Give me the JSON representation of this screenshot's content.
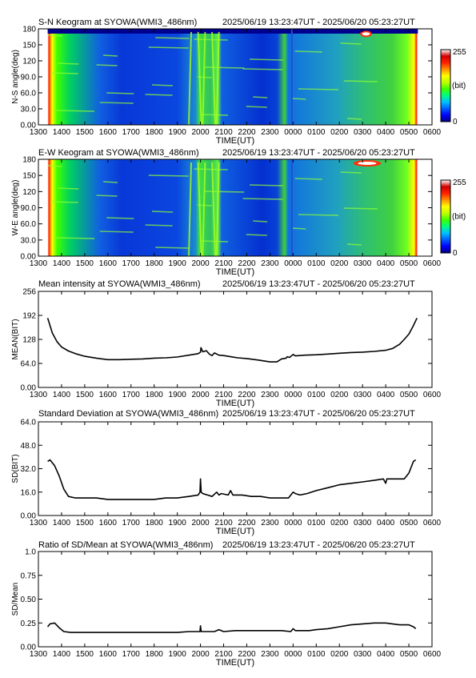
{
  "figure": {
    "time_range": "2025/06/19 13:23:47UT - 2025/06/20 05:23:27UT",
    "station": "SYOWA",
    "instrument": "WMI3_486nm"
  },
  "colorbar": {
    "max_label": "255",
    "unit_label": "(bit)",
    "min_label": "0",
    "stops": [
      "#000080",
      "#0000ff",
      "#0060ff",
      "#00c0ff",
      "#00ff80",
      "#40ff00",
      "#c0ff00",
      "#ffff00",
      "#ff9000",
      "#ff2000",
      "#d00000",
      "#ffffff"
    ]
  },
  "chart_data": [
    {
      "type": "heatmap",
      "title": "S-N Keogram at SYOWA(WMI3_486nm)",
      "subtitle": "2025/06/19 13:23:47UT - 2025/06/20 05:23:27UT",
      "xlabel": "TIME(UT)",
      "ylabel": "N-S angle(deg)",
      "x_ticks": [
        "1300",
        "1400",
        "1500",
        "1600",
        "1700",
        "1800",
        "1900",
        "2000",
        "2100",
        "2200",
        "2300",
        "0000",
        "0100",
        "0200",
        "0300",
        "0400",
        "0500",
        "0600"
      ],
      "y_ticks": [
        "0.00",
        "30.0",
        "60.0",
        "90.0",
        "120",
        "150",
        "180"
      ],
      "ylim": [
        0,
        180
      ],
      "value_range": [
        0,
        255
      ],
      "data_start_hour": 13.4,
      "data_end_hour": 29.39,
      "features": [
        {
          "kind": "auroral arc",
          "start_hour": 19.6,
          "end_hour": 20.8
        },
        {
          "kind": "moon",
          "start_hour": 26.9,
          "end_hour": 27.4,
          "angle": 175
        }
      ]
    },
    {
      "type": "heatmap",
      "title": "E-W Keogram at SYOWA(WMI3_486nm)",
      "subtitle": "2025/06/19 13:23:47UT - 2025/06/20 05:23:27UT",
      "xlabel": "TIME(UT)",
      "ylabel": "W-E angle(deg)",
      "x_ticks": [
        "1300",
        "1400",
        "1500",
        "1600",
        "1700",
        "1800",
        "1900",
        "2000",
        "2100",
        "2200",
        "2300",
        "0000",
        "0100",
        "0200",
        "0300",
        "0400",
        "0500",
        "0600"
      ],
      "y_ticks": [
        "0.00",
        "30.0",
        "60.0",
        "90.0",
        "120",
        "150",
        "180"
      ],
      "ylim": [
        0,
        180
      ],
      "value_range": [
        0,
        255
      ],
      "data_start_hour": 13.4,
      "data_end_hour": 29.39,
      "features": [
        {
          "kind": "auroral arc",
          "start_hour": 19.6,
          "end_hour": 20.8
        },
        {
          "kind": "moon",
          "start_hour": 26.6,
          "end_hour": 27.8,
          "angle": 177
        }
      ]
    },
    {
      "type": "line",
      "title": "Mean intensity at SYOWA(WMI3_486nm)",
      "subtitle": "2025/06/19 13:23:47UT - 2025/06/20 05:23:27UT",
      "xlabel": "TIME(UT)",
      "ylabel": "MEAN(BIT)",
      "x_ticks": [
        "1300",
        "1400",
        "1500",
        "1600",
        "1700",
        "1800",
        "1900",
        "2000",
        "2100",
        "2200",
        "2300",
        "0000",
        "0100",
        "0200",
        "0300",
        "0400",
        "0500",
        "0600"
      ],
      "y_ticks": [
        "0.00",
        "64.0",
        "128",
        "192",
        "256"
      ],
      "xlim_hours": [
        13,
        30
      ],
      "ylim": [
        0,
        256
      ],
      "series": [
        {
          "x_hours": [
            13.4,
            13.6,
            13.8,
            14.0,
            14.3,
            14.6,
            15.0,
            15.5,
            16.0,
            16.5,
            17.0,
            17.5,
            18.0,
            18.5,
            19.0,
            19.5,
            19.9,
            20.0,
            20.02,
            20.1,
            20.25,
            20.4,
            20.5,
            20.6,
            20.8,
            21.0,
            21.3,
            21.6,
            22.0,
            22.5,
            23.0,
            23.3,
            23.5,
            23.7,
            23.75,
            23.85,
            24.0,
            24.1,
            24.5,
            25.0,
            25.5,
            26.0,
            26.5,
            27.0,
            27.5,
            28.0,
            28.3,
            28.6,
            28.8,
            29.0,
            29.2,
            29.35
          ],
          "values": [
            185,
            145,
            122,
            108,
            97,
            90,
            83,
            78,
            74,
            74,
            75,
            76,
            78,
            79,
            81,
            86,
            90,
            94,
            106,
            95,
            98,
            88,
            85,
            92,
            86,
            85,
            82,
            79,
            77,
            73,
            68,
            68,
            76,
            78,
            82,
            80,
            88,
            84,
            86,
            87,
            89,
            91,
            93,
            94,
            96,
            99,
            104,
            115,
            128,
            142,
            165,
            185
          ]
        }
      ]
    },
    {
      "type": "line",
      "title": "Standard Deviation at SYOWA(WMI3_486nm)",
      "subtitle": "2025/06/19 13:23:47UT - 2025/06/20 05:23:27UT",
      "xlabel": "TIME(UT)",
      "ylabel": "SD(BIT)",
      "x_ticks": [
        "1300",
        "1400",
        "1500",
        "1600",
        "1700",
        "1800",
        "1900",
        "2000",
        "2100",
        "2200",
        "2300",
        "0000",
        "0100",
        "0200",
        "0300",
        "0400",
        "0500",
        "0600"
      ],
      "y_ticks": [
        "0.00",
        "16.0",
        "32.0",
        "48.0",
        "64.0"
      ],
      "xlim_hours": [
        13,
        30
      ],
      "ylim": [
        0,
        64
      ],
      "series": [
        {
          "x_hours": [
            13.4,
            13.5,
            13.7,
            13.9,
            14.1,
            14.3,
            14.6,
            15.0,
            15.5,
            16.0,
            16.5,
            17.0,
            17.5,
            18.0,
            18.5,
            19.0,
            19.5,
            19.9,
            19.98,
            20.0,
            20.03,
            20.1,
            20.3,
            20.5,
            20.7,
            20.8,
            20.9,
            21.2,
            21.3,
            21.4,
            21.8,
            22.2,
            22.6,
            23.0,
            23.5,
            23.8,
            24.0,
            24.1,
            24.3,
            24.6,
            25.0,
            25.5,
            26.0,
            26.5,
            27.0,
            27.5,
            27.9,
            28.0,
            28.05,
            28.5,
            28.8,
            29.0,
            29.2,
            29.3
          ],
          "values": [
            37,
            38,
            34,
            27,
            18,
            13,
            12,
            12,
            12,
            11,
            11,
            11,
            11,
            11,
            12,
            12,
            13,
            14,
            16,
            25,
            16,
            15,
            14,
            13,
            16,
            14,
            15,
            14,
            17,
            14,
            14,
            13,
            13,
            12,
            12,
            12,
            16,
            15,
            14,
            15,
            17,
            19,
            21,
            22,
            23,
            24,
            25,
            22,
            25,
            25,
            25,
            29,
            37,
            38
          ]
        }
      ]
    },
    {
      "type": "line",
      "title": "Ratio of SD/Mean at SYOWA(WMI3_486nm)",
      "subtitle": "2025/06/19 13:23:47UT - 2025/06/20 05:23:27UT",
      "xlabel": "TIME(UT)",
      "ylabel": "SD/Mean",
      "x_ticks": [
        "1300",
        "1400",
        "1500",
        "1600",
        "1700",
        "1800",
        "1900",
        "2000",
        "2100",
        "2200",
        "2300",
        "0000",
        "0100",
        "0200",
        "0300",
        "0400",
        "0500",
        "0600"
      ],
      "y_ticks": [
        "0.00",
        "0.25",
        "0.50",
        "0.75",
        "1.0"
      ],
      "xlim_hours": [
        13,
        30
      ],
      "ylim": [
        0,
        1.0
      ],
      "series": [
        {
          "x_hours": [
            13.4,
            13.5,
            13.7,
            13.9,
            14.1,
            14.4,
            14.8,
            15.5,
            16.0,
            16.5,
            17.0,
            17.5,
            18.0,
            18.5,
            19.0,
            19.5,
            19.98,
            20.0,
            20.03,
            20.3,
            20.6,
            20.8,
            21.0,
            21.5,
            22.0,
            22.5,
            23.0,
            23.5,
            23.9,
            24.0,
            24.1,
            24.3,
            24.7,
            25.0,
            25.5,
            26.0,
            26.5,
            27.0,
            27.5,
            28.0,
            28.3,
            28.6,
            29.0,
            29.2,
            29.3
          ],
          "values": [
            0.21,
            0.24,
            0.25,
            0.2,
            0.16,
            0.15,
            0.15,
            0.15,
            0.15,
            0.15,
            0.15,
            0.15,
            0.15,
            0.15,
            0.15,
            0.16,
            0.16,
            0.22,
            0.16,
            0.16,
            0.16,
            0.18,
            0.16,
            0.17,
            0.17,
            0.17,
            0.17,
            0.17,
            0.16,
            0.19,
            0.17,
            0.17,
            0.17,
            0.18,
            0.19,
            0.21,
            0.23,
            0.24,
            0.25,
            0.25,
            0.24,
            0.23,
            0.23,
            0.21,
            0.19
          ]
        }
      ]
    }
  ]
}
